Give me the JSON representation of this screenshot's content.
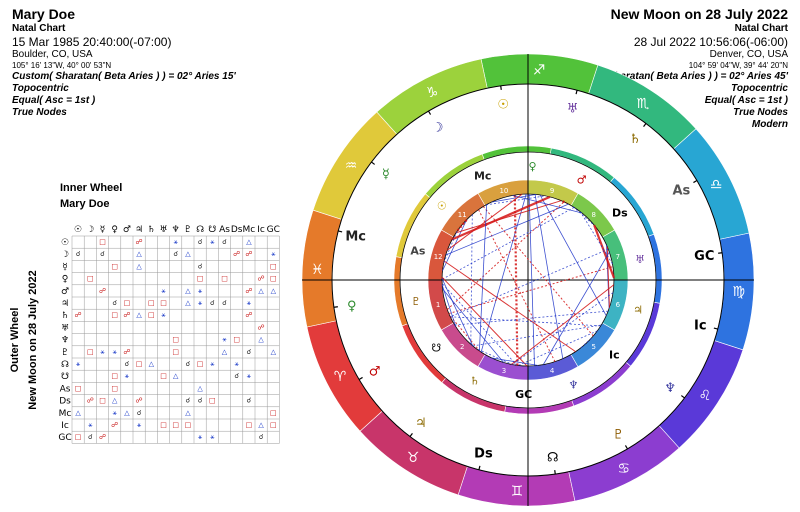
{
  "left_chart": {
    "name": "Mary Doe",
    "type": "Natal Chart",
    "datetime": "15 Mar 1985 20:40:00(-07:00)",
    "place": "Boulder, CO, USA",
    "coords": "105° 16' 13\"W, 40° 00' 53\"N",
    "ayanamsa": "Custom( Sharatan( Beta Aries ) ) = 02° Aries 15'",
    "position": "Topocentric",
    "houses": "Equal( Asc = 1st )",
    "nodes": "True Nodes"
  },
  "right_chart": {
    "name": "New Moon on 28 July 2022",
    "type": "Natal Chart",
    "datetime": "28 Jul 2022 10:56:06(-06:00)",
    "place": "Denver, CO, USA",
    "coords": "104° 59' 04\"W, 39° 44' 20\"N",
    "ayanamsa": "Custom( Sharatan( Beta Aries ) ) = 02° Aries 45'",
    "position": "Topocentric",
    "houses": "Equal( Asc = 1st )",
    "nodes": "True Nodes",
    "style": "Modern"
  },
  "aspect_grid": {
    "inner_label": "Inner Wheel",
    "inner_name": "Mary Doe",
    "outer_label": "Outer Wheel",
    "outer_name": "New Moon on 28 July 2022",
    "symbols": [
      "☉",
      "☽",
      "☿",
      "♀",
      "♂",
      "♃",
      "♄",
      "♅",
      "♆",
      "♇",
      "☊",
      "☋",
      "As",
      "Ds",
      "Mc",
      "Ic",
      "GC"
    ]
  },
  "wheel": {
    "zodiac_colors": [
      "#e23b3b",
      "#c8356a",
      "#b33bb5",
      "#8c3dd0",
      "#5a39d8",
      "#2e73e0",
      "#28a6d3",
      "#32b87e",
      "#52c23a",
      "#9cd23c",
      "#e0c93a",
      "#e57a2a"
    ],
    "zodiac_glyphs": [
      "♈",
      "♉",
      "♊",
      "♋",
      "♌",
      "♍",
      "♎",
      "♏",
      "♐",
      "♑",
      "♒",
      "♓"
    ],
    "inner_colors": [
      "#d24a4a",
      "#c94b8d",
      "#9b4fd0",
      "#5b5bd6",
      "#3a88d8",
      "#3db3c3",
      "#47bf7b",
      "#7cc84b",
      "#c3c94a",
      "#d9a03e",
      "#d9743c",
      "#d9573c"
    ],
    "house_numbers": [
      "1",
      "2",
      "3",
      "4",
      "5",
      "6",
      "7",
      "8",
      "9",
      "10",
      "11",
      "12"
    ],
    "outer_points": [
      {
        "g": "☉",
        "c": "#c8a000"
      },
      {
        "g": "☽",
        "c": "#1a1a8c"
      },
      {
        "g": "☿",
        "c": "#2e8b2e"
      },
      {
        "g": "Mc",
        "c": "#222"
      },
      {
        "g": "♀",
        "c": "#2e8b2e"
      },
      {
        "g": "♂",
        "c": "#c00000"
      },
      {
        "g": "♃",
        "c": "#8c6a00"
      },
      {
        "g": "Ds",
        "c": "#000"
      },
      {
        "g": "☊",
        "c": "#000"
      },
      {
        "g": "♇",
        "c": "#8c5a00"
      },
      {
        "g": "♆",
        "c": "#3a3aa0"
      },
      {
        "g": "Ic",
        "c": "#000"
      },
      {
        "g": "GC",
        "c": "#000"
      },
      {
        "g": "As",
        "c": "#555"
      },
      {
        "g": "♄",
        "c": "#8c6a00"
      },
      {
        "g": "♅",
        "c": "#6a3aa0"
      }
    ],
    "inner_points": [
      {
        "g": "As",
        "c": "#444"
      },
      {
        "g": "♇",
        "c": "#8c5a00"
      },
      {
        "g": "☋",
        "c": "#000"
      },
      {
        "g": "♄",
        "c": "#8c6a00"
      },
      {
        "g": "GC",
        "c": "#000"
      },
      {
        "g": "♆",
        "c": "#3a3aa0"
      },
      {
        "g": "Ic",
        "c": "#000"
      },
      {
        "g": "♃",
        "c": "#8c6a00"
      },
      {
        "g": "♅",
        "c": "#6a3aa0"
      },
      {
        "g": "Ds",
        "c": "#000"
      },
      {
        "g": "♂",
        "c": "#c00000"
      },
      {
        "g": "♀",
        "c": "#2e8b2e"
      },
      {
        "g": "Mc",
        "c": "#222"
      },
      {
        "g": "☉",
        "c": "#c8a000"
      }
    ]
  }
}
